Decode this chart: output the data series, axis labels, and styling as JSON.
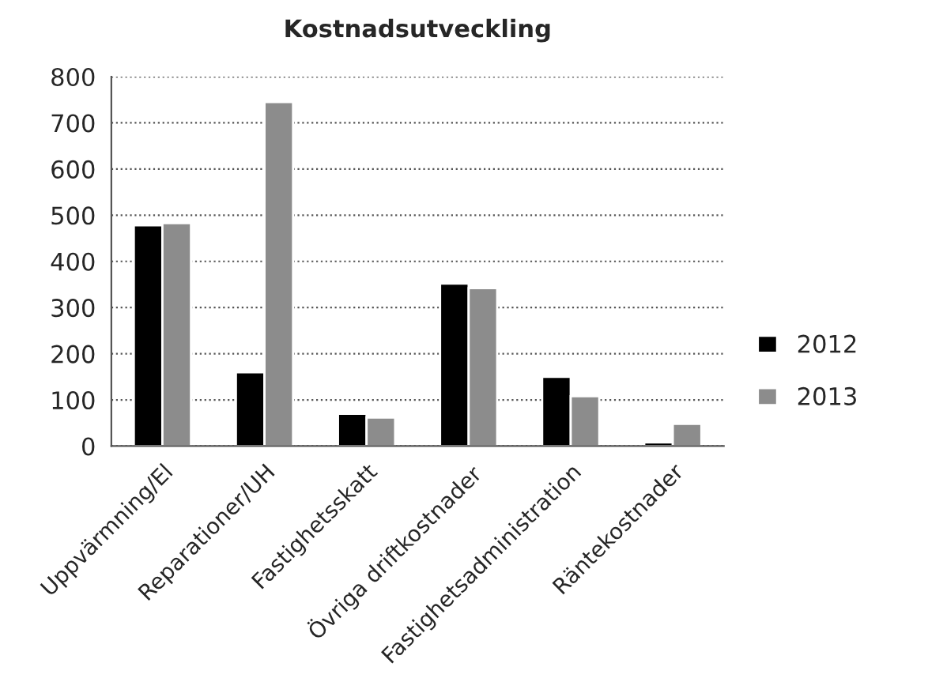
{
  "chart_data": {
    "type": "bar",
    "title": "Kostnadsutveckling",
    "categories": [
      "Uppvärmning/El",
      "Reparationer/UH",
      "Fastighetsskatt",
      "Övriga driftkostnader",
      "Fastighetsadministration",
      "Räntekostnader"
    ],
    "series": [
      {
        "name": "2012",
        "color": "#000000",
        "values": [
          478,
          160,
          70,
          352,
          150,
          8
        ]
      },
      {
        "name": "2013",
        "color": "#8c8c8c",
        "values": [
          483,
          745,
          62,
          342,
          108,
          48
        ]
      }
    ],
    "ylim": [
      0,
      800
    ],
    "yticks": [
      0,
      100,
      200,
      300,
      400,
      500,
      600,
      700,
      800
    ],
    "grid": "y",
    "legend": "right"
  }
}
